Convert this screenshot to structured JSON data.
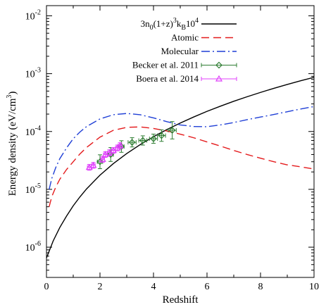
{
  "chart_data": {
    "type": "line",
    "xlabel": "Redshift",
    "ylabel": "Energy density (eV/cm",
    "ylabel_sup": "3",
    "ylabel_end": ")",
    "xlim": [
      0,
      10
    ],
    "ylim": [
      3e-07,
      0.015
    ],
    "yscale": "log",
    "grid": false,
    "legend_position": "top-right",
    "x_ticks": [
      {
        "value": 0,
        "label": "0"
      },
      {
        "value": 2,
        "label": "2"
      },
      {
        "value": 4,
        "label": "4"
      },
      {
        "value": 6,
        "label": "6"
      },
      {
        "value": 8,
        "label": "8"
      },
      {
        "value": 10,
        "label": "10"
      }
    ],
    "y_ticks": [
      {
        "value": 1e-06,
        "base": "10",
        "exp": "-6"
      },
      {
        "value": 1e-05,
        "base": "10",
        "exp": "-5"
      },
      {
        "value": 0.0001,
        "base": "10",
        "exp": "-4"
      },
      {
        "value": 0.001,
        "base": "10",
        "exp": "-3"
      },
      {
        "value": 0.01,
        "base": "10",
        "exp": "-2"
      }
    ],
    "series": [
      {
        "name": "3n0(1+z)3kB104",
        "legend_parts": [
          {
            "t": "3n",
            "s": "n"
          },
          {
            "t": "0",
            "s": "sub"
          },
          {
            "t": "(1+z)",
            "s": "n"
          },
          {
            "t": "3",
            "s": "sup"
          },
          {
            "t": "k",
            "s": "n"
          },
          {
            "t": "B",
            "s": "sub"
          },
          {
            "t": "10",
            "s": "n"
          },
          {
            "t": "4",
            "s": "sup"
          }
        ],
        "style": "line",
        "color": "#000000",
        "dash": "",
        "x": [
          0,
          0.25,
          0.5,
          0.75,
          1,
          1.25,
          1.5,
          2,
          2.5,
          3,
          3.5,
          4,
          4.5,
          5,
          5.5,
          6,
          6.5,
          7,
          7.5,
          8,
          8.5,
          9,
          9.5,
          10
        ],
        "y": [
          6.5e-07,
          1.28e-06,
          2.2e-06,
          3.45e-06,
          5.2e-06,
          7.4e-06,
          1.02e-05,
          1.76e-05,
          2.79e-05,
          4.16e-05,
          5.92e-05,
          8.13e-05,
          0.000108,
          0.00014,
          0.000178,
          0.000223,
          0.000274,
          0.000333,
          0.000399,
          0.000474,
          0.000558,
          0.00065,
          0.000753,
          0.000865
        ]
      },
      {
        "name": "Atomic",
        "style": "line",
        "color": "#e41a1c",
        "dash": "11,6",
        "x": [
          0.1,
          0.2,
          0.35,
          0.5,
          0.75,
          1,
          1.25,
          1.5,
          2,
          2.5,
          3,
          3.5,
          4,
          4.5,
          5,
          5.5,
          6,
          6.5,
          7,
          7.5,
          8,
          8.5,
          9,
          9.5,
          10
        ],
        "y": [
          5e-06,
          7.5e-06,
          1.1e-05,
          1.5e-05,
          2.2e-05,
          3e-05,
          4.1e-05,
          5.3e-05,
          8e-05,
          0.000105,
          0.000118,
          0.00012,
          0.000113,
          0.000102,
          9e-05,
          7.8e-05,
          6.6e-05,
          5.6e-05,
          4.7e-05,
          4e-05,
          3.45e-05,
          3e-05,
          2.65e-05,
          2.45e-05,
          2.25e-05
        ]
      },
      {
        "name": "Molecular",
        "style": "line",
        "color": "#1f3fd6",
        "dash": "12,4,2,4",
        "x": [
          0.1,
          0.2,
          0.35,
          0.5,
          0.75,
          1,
          1.25,
          1.5,
          2,
          2.5,
          3,
          3.5,
          4,
          4.5,
          5,
          5.5,
          6,
          6.5,
          7,
          7.5,
          8,
          8.5,
          9,
          9.5,
          10
        ],
        "y": [
          1e-05,
          1.55e-05,
          2.4e-05,
          3.4e-05,
          5.2e-05,
          7.5e-05,
          9.8e-05,
          0.000122,
          0.000165,
          0.000195,
          0.000205,
          0.000195,
          0.000172,
          0.000148,
          0.00013,
          0.000122,
          0.000121,
          0.00013,
          0.000143,
          0.00016,
          0.000178,
          0.000197,
          0.00022,
          0.000245,
          0.00027
        ]
      },
      {
        "name": "Becker et al. 2011",
        "style": "points",
        "marker": "diamond",
        "color": "#2e7d32",
        "points": [
          {
            "x": 2.0,
            "y": 3e-05,
            "xerr": 0.1,
            "yerr": 0.12
          },
          {
            "x": 2.4,
            "y": 4e-05,
            "xerr": 0.1,
            "yerr": 0.12
          },
          {
            "x": 2.8,
            "y": 5.5e-05,
            "xerr": 0.1,
            "yerr": 0.1
          },
          {
            "x": 3.2,
            "y": 6.5e-05,
            "xerr": 0.15,
            "yerr": 0.08
          },
          {
            "x": 3.6,
            "y": 7e-05,
            "xerr": 0.15,
            "yerr": 0.08
          },
          {
            "x": 4.0,
            "y": 7.5e-05,
            "xerr": 0.15,
            "yerr": 0.08
          },
          {
            "x": 4.3,
            "y": 8.5e-05,
            "xerr": 0.15,
            "yerr": 0.1
          },
          {
            "x": 4.7,
            "y": 0.000105,
            "xerr": 0.15,
            "yerr": 0.15
          }
        ]
      },
      {
        "name": "Boera et al. 2014",
        "style": "points",
        "marker": "triangle",
        "color": "#e040fb",
        "points": [
          {
            "x": 1.6,
            "y": 2.4e-05,
            "xerr": 0.07,
            "yerr": 0.05
          },
          {
            "x": 1.75,
            "y": 2.6e-05,
            "xerr": 0.07,
            "yerr": 0.05
          },
          {
            "x": 2.1,
            "y": 3.3e-05,
            "xerr": 0.07,
            "yerr": 0.05
          },
          {
            "x": 2.2,
            "y": 4e-05,
            "xerr": 0.07,
            "yerr": 0.05
          },
          {
            "x": 2.35,
            "y": 4.3e-05,
            "xerr": 0.07,
            "yerr": 0.05
          },
          {
            "x": 2.5,
            "y": 4.7e-05,
            "xerr": 0.07,
            "yerr": 0.05
          },
          {
            "x": 2.65,
            "y": 5.2e-05,
            "xerr": 0.07,
            "yerr": 0.05
          },
          {
            "x": 2.75,
            "y": 5.7e-05,
            "xerr": 0.07,
            "yerr": 0.05
          }
        ]
      }
    ]
  }
}
